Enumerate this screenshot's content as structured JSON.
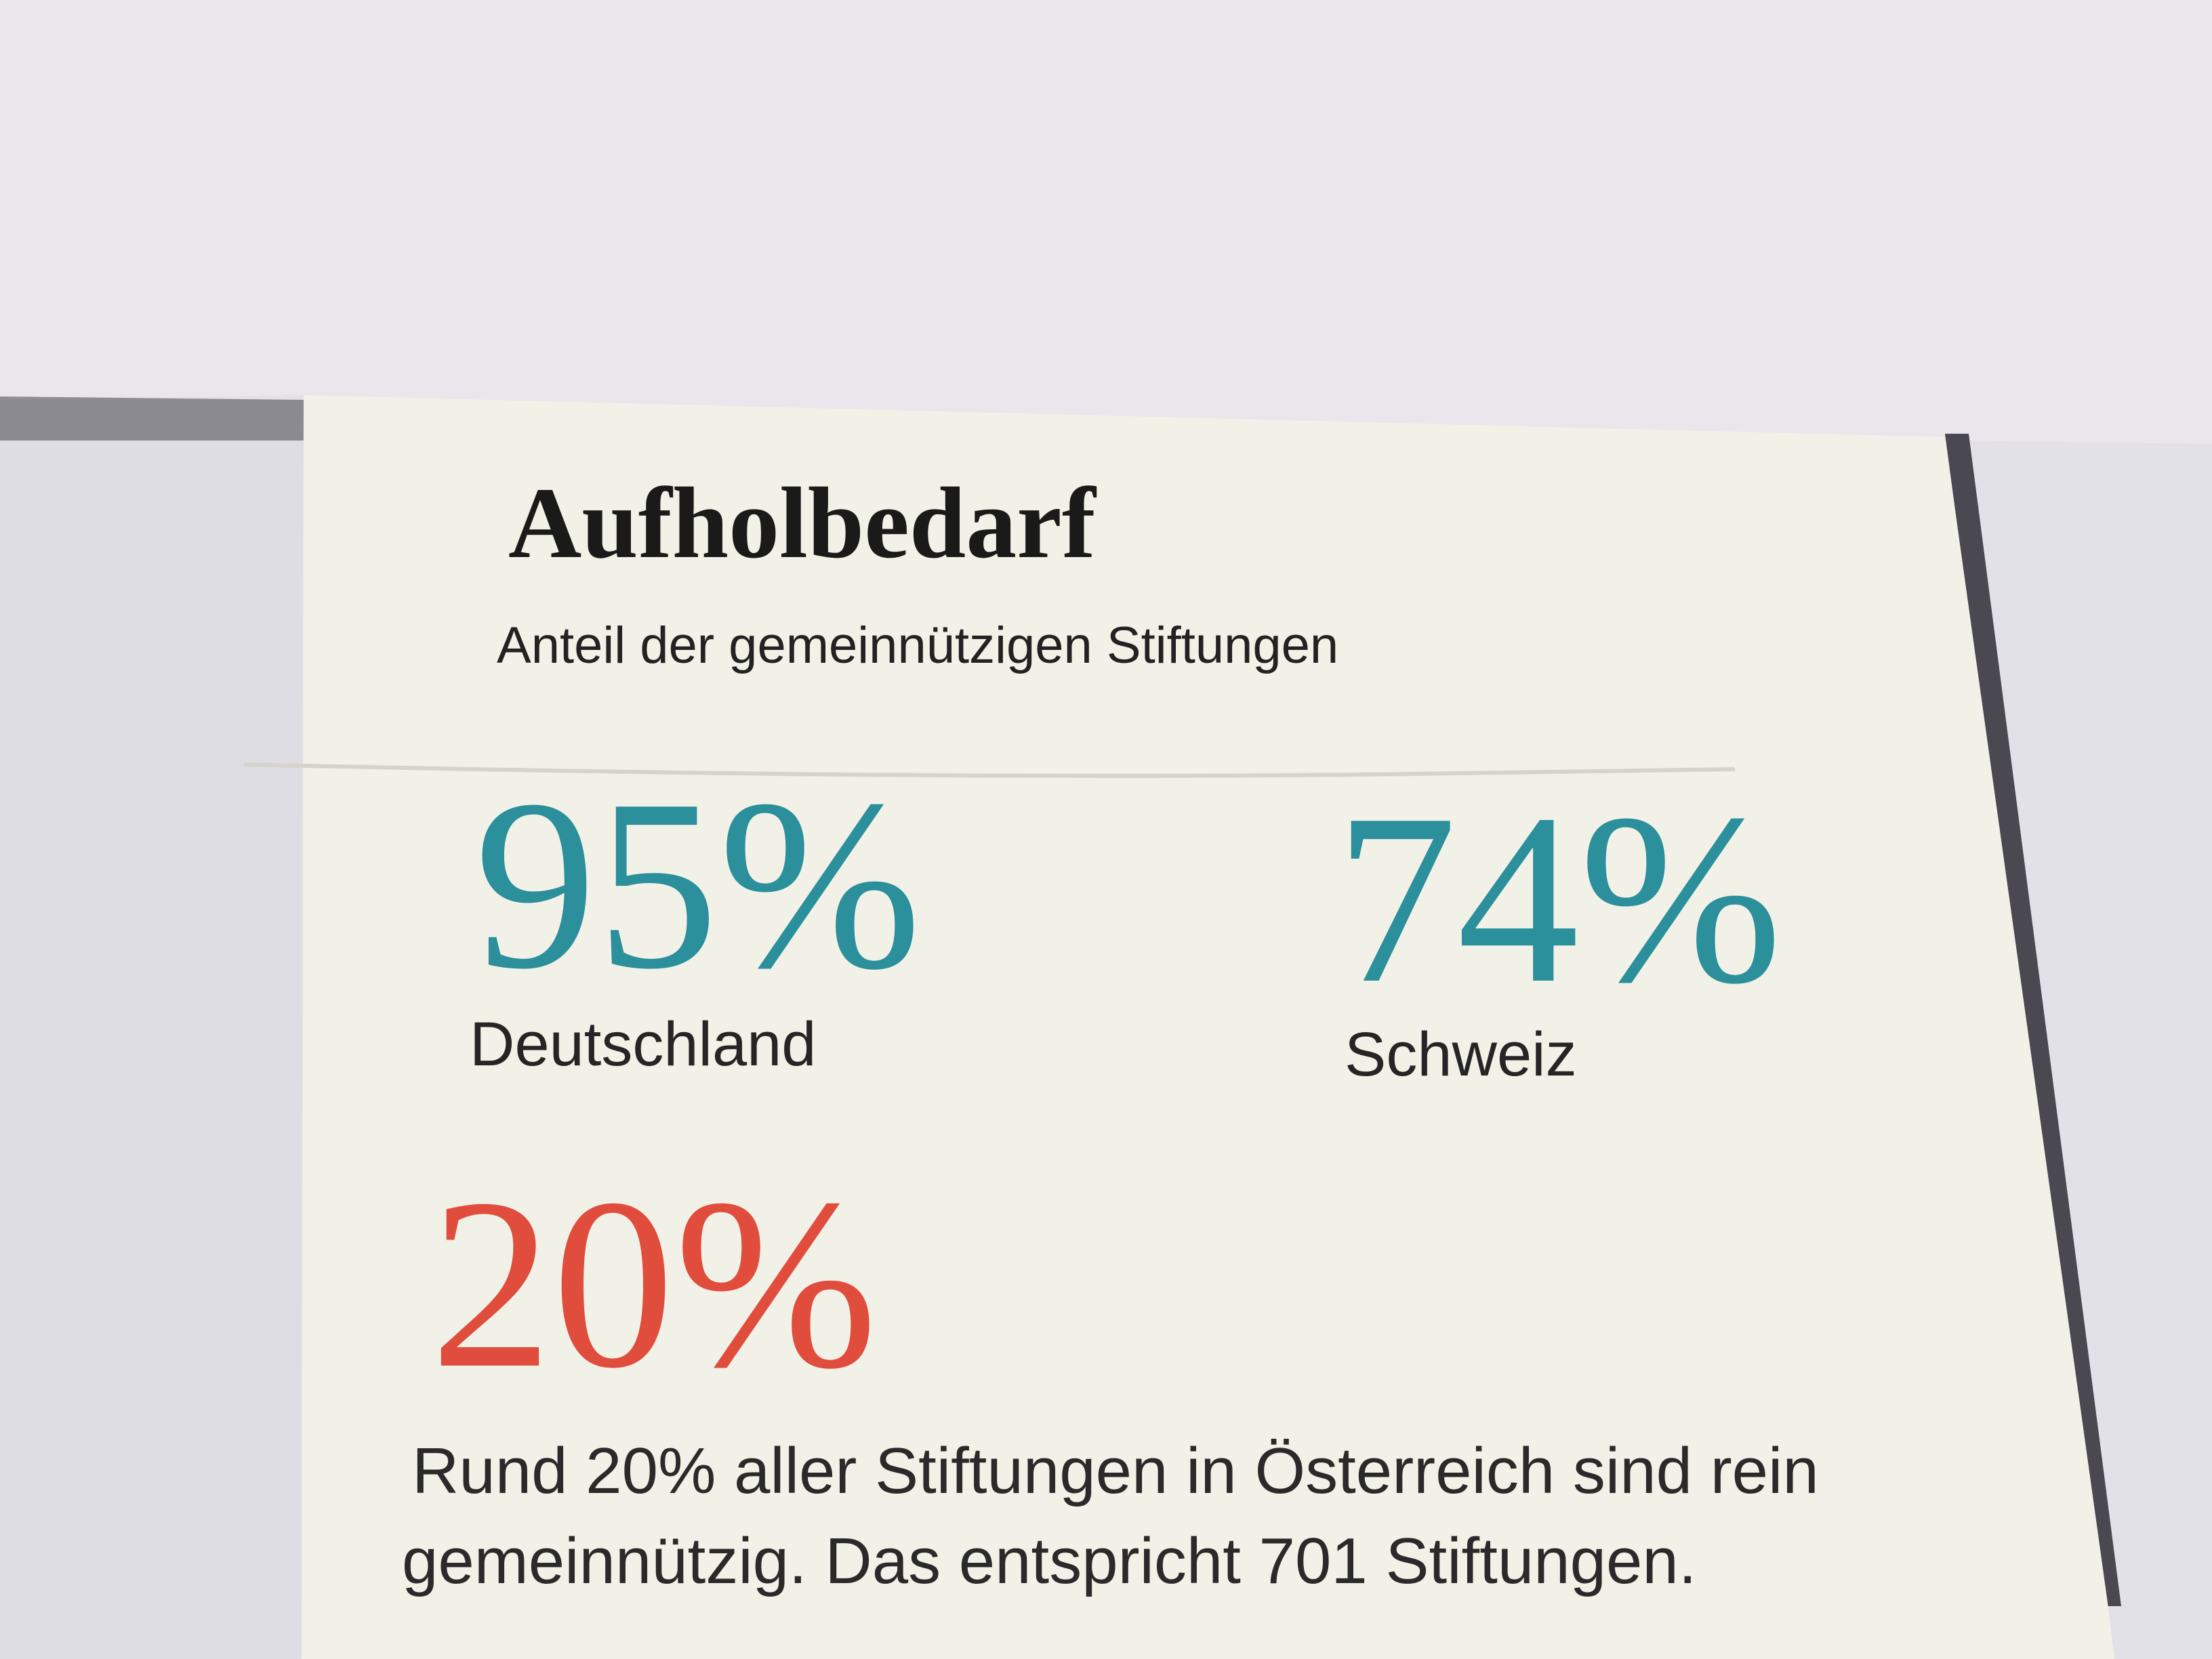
{
  "header": {
    "title": "Aufholbedarf",
    "subtitle": "Anteil der gemeinnützigen Stiftungen"
  },
  "stats": [
    {
      "value": "95%",
      "label": "Deutschland"
    },
    {
      "value": "74%",
      "label": "Schweiz"
    },
    {
      "value": "20%"
    }
  ],
  "note": {
    "lines": [
      "Rund 20% aller Stiftungen in Österreich sind rein",
      "gemeinnützig. Das entspricht 701 Stiftungen."
    ]
  }
}
